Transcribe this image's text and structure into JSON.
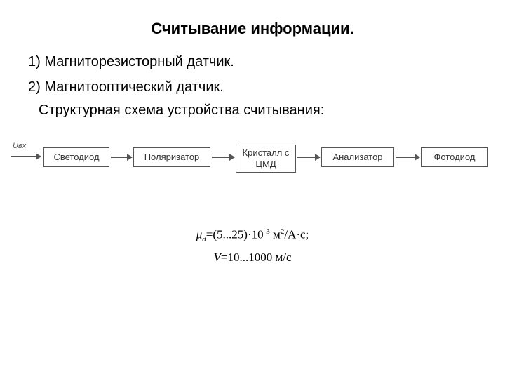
{
  "title": "Считывание информации.",
  "list_items": [
    "1) Магниторезисторный датчик.",
    "2) Магнитооптический датчик."
  ],
  "subtitle": "Структурная схема устройства считывания:",
  "diagram": {
    "input_label": "Uвх",
    "boxes": [
      "Светодиод",
      "Поляризатор",
      "Кристалл с ЦМД",
      "Анализатор",
      "Фотодиод"
    ],
    "box_border_color": "#555555",
    "arrow_color": "#555555",
    "background_color": "#ffffff"
  },
  "formulas": {
    "mu_prefix": "μ",
    "mu_sub": "d",
    "mu_value": "=(5...25)·10",
    "mu_exp": "-3",
    "mu_unit_m": " м",
    "mu_exp2": "2",
    "mu_rest": "/А·с;",
    "v_prefix": "V",
    "v_rest": "=10...1000 м/с"
  }
}
